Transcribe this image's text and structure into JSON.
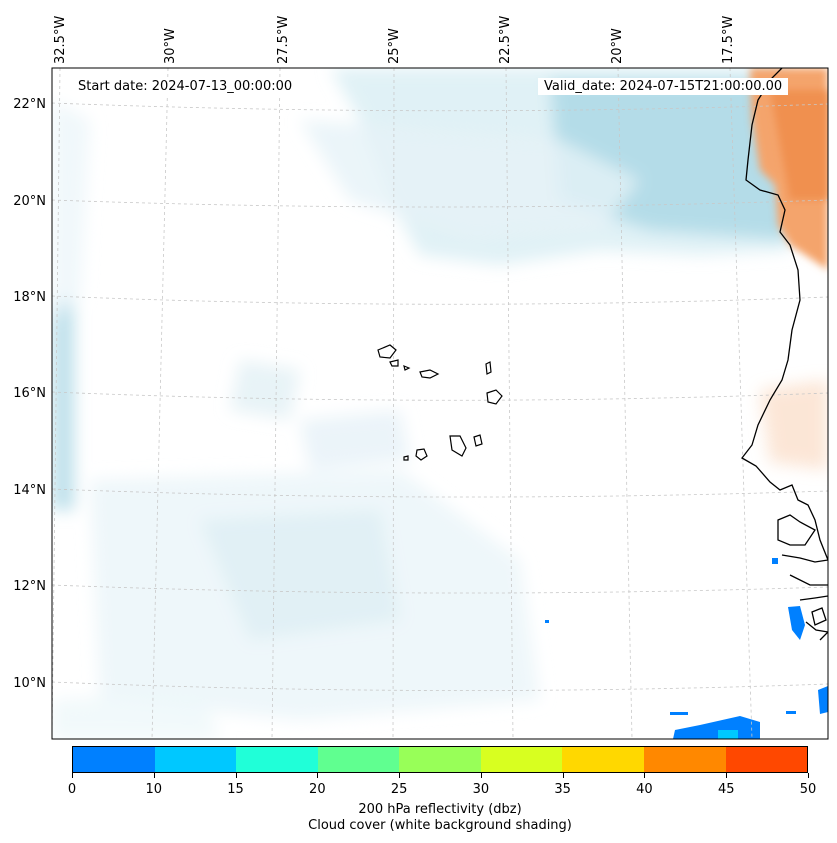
{
  "lon_labels": [
    "32.5°W",
    "30°W",
    "27.5°W",
    "25°W",
    "22.5°W",
    "20°W",
    "17.5°W"
  ],
  "lat_labels": [
    "22°N",
    "20°N",
    "18°N",
    "16°N",
    "14°N",
    "12°N",
    "10°N"
  ],
  "start_date": "Start date: 2024-07-13_00:00:00",
  "valid_date": "Valid_date: 2024-07-15T21:00:00.00",
  "colorbar": {
    "ticks": [
      "0",
      "10",
      "15",
      "20",
      "25",
      "30",
      "35",
      "40",
      "45",
      "50"
    ],
    "colors": [
      "#0080ff",
      "#00c8ff",
      "#20ffd8",
      "#60ff90",
      "#98ff58",
      "#d8ff20",
      "#ffd800",
      "#ff8800",
      "#ff4800"
    ],
    "label_line1": "200 hPa reflectivity (dbz)",
    "label_line2": "Cloud cover (white background shading)"
  }
}
